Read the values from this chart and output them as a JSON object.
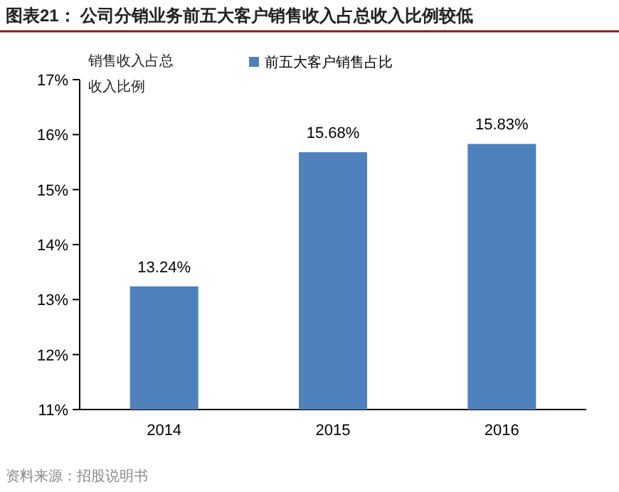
{
  "chart_data": {
    "type": "bar",
    "title": "图表21：  公司分销业务前五大客户销售收入占总收入比例较低",
    "ylabel": "销售收入占总收入比例",
    "categories": [
      "2014",
      "2015",
      "2016"
    ],
    "series": [
      {
        "name": "前五大客户销售占比",
        "color": "#4f81bd",
        "values": [
          13.24,
          15.68,
          15.83
        ],
        "value_labels": [
          "13.24%",
          "15.68%",
          "15.83%"
        ]
      }
    ],
    "ylim": [
      11,
      17
    ],
    "yticks": [
      {
        "value": 11,
        "label": "11%"
      },
      {
        "value": 12,
        "label": "12%"
      },
      {
        "value": 13,
        "label": "13%"
      },
      {
        "value": 14,
        "label": "14%"
      },
      {
        "value": 15,
        "label": "15%"
      },
      {
        "value": 16,
        "label": "16%"
      },
      {
        "value": 17,
        "label": "17%"
      }
    ],
    "legend": "top",
    "annotations": [
      "资料来源：招股说明书"
    ]
  }
}
